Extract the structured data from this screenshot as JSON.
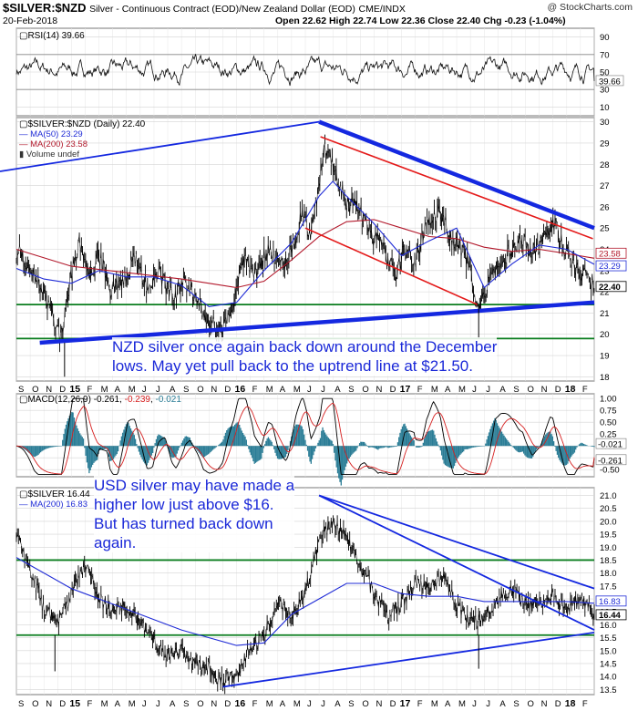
{
  "header": {
    "symbol": "$SILVER:$NZD",
    "description": "Silver - Continuous Contract (EOD)/New Zealand Dollar (EOD)",
    "exchange": "CME/INDX",
    "date": "20-Feb-2018",
    "ohlc_text": "Open 22.62  High 22.74  Low 22.36  Close 22.40  Chg -0.23 (-1.04%)",
    "watermark": "@ StockCharts.com"
  },
  "colors": {
    "price": "#000000",
    "ma50": "#1f2bd6",
    "ma200": "#b2182b",
    "trend_blue": "#1428e0",
    "resist_red": "#e41a1a",
    "support_green": "#0a7d1e",
    "macd_hist": "#2b7d96",
    "annotation": "#1a28d8"
  },
  "panels": {
    "rsi": {
      "legend": "RSI(14) 39.66",
      "last_label": "39.66",
      "ticks": [
        "90",
        "70",
        "50",
        "30",
        "10"
      ]
    },
    "nzd": {
      "legend_main": "$SILVER:$NZD (Daily) 22.40",
      "legend_ma50": "MA(50) 23.29",
      "legend_ma200": "MA(200) 23.58",
      "legend_volume": "Volume undef",
      "ticks": [
        "30",
        "29",
        "28",
        "27",
        "26",
        "25",
        "24",
        "23",
        "22",
        "21",
        "20",
        "19",
        "18"
      ],
      "last_labels": [
        "23.58",
        "23.29",
        "22.40"
      ]
    },
    "macd": {
      "legend_prefix": "MACD(12,26,9)",
      "legend_v1": "-0.261",
      "legend_v2": "-0.239",
      "legend_v3": "-0.021",
      "ticks": [
        "1.00",
        "0.75",
        "0.50",
        "0.25",
        "0.00",
        "-0.25",
        "-0.50"
      ],
      "last_labels": [
        "-0.021",
        "-0.261"
      ]
    },
    "usd": {
      "legend_main": "$SILVER 16.44",
      "legend_ma200": "MA(200) 16.83",
      "ticks": [
        "21.0",
        "20.5",
        "20.0",
        "19.5",
        "19.0",
        "18.5",
        "18.0",
        "17.5",
        "17.0",
        "16.5",
        "16.0",
        "15.5",
        "15.0",
        "14.5",
        "14.0",
        "13.5"
      ],
      "last_labels": [
        "16.83",
        "16.44"
      ]
    }
  },
  "xaxis": {
    "labels": [
      "S",
      "O",
      "N",
      "D",
      "15",
      "F",
      "M",
      "A",
      "M",
      "J",
      "J",
      "A",
      "S",
      "O",
      "N",
      "D",
      "16",
      "F",
      "M",
      "A",
      "M",
      "J",
      "J",
      "A",
      "S",
      "O",
      "N",
      "D",
      "17",
      "F",
      "M",
      "A",
      "M",
      "J",
      "J",
      "A",
      "S",
      "O",
      "N",
      "D",
      "18",
      "F"
    ]
  },
  "annotations": {
    "nzd_note": [
      "NZD silver once again back down around the December",
      "lows. May yet pull back to the uptrend line at $21.50."
    ],
    "usd_note": [
      "USD silver may have made a",
      "higher low just above $16.",
      "But has turned back down",
      "again."
    ]
  },
  "chart_data": [
    {
      "type": "line",
      "panel": "RSI",
      "ylim": [
        0,
        100
      ],
      "ticks": [
        10,
        30,
        50,
        70,
        90
      ],
      "reference_lines": [
        30,
        70
      ],
      "last": 39.66
    },
    {
      "type": "line",
      "panel": "$SILVER:$NZD (Daily)",
      "ylim": [
        17.8,
        30.2
      ],
      "x_months": [
        0,
        42
      ],
      "series": [
        {
          "name": "$SILVER:$NZD",
          "points": [
            [
              0,
              24.0
            ],
            [
              1.5,
              22.6
            ],
            [
              2.5,
              21.0
            ],
            [
              3.2,
              19.8
            ],
            [
              4,
              22.8
            ],
            [
              4.6,
              24.4
            ],
            [
              5.3,
              22.5
            ],
            [
              6,
              23.8
            ],
            [
              6.8,
              22.0
            ],
            [
              7.8,
              22.6
            ],
            [
              8.6,
              23.5
            ],
            [
              9.5,
              22.2
            ],
            [
              10.3,
              22.9
            ],
            [
              11.3,
              21.8
            ],
            [
              12.3,
              22.4
            ],
            [
              13,
              21.6
            ],
            [
              14,
              20.7
            ],
            [
              15,
              20.2
            ],
            [
              15.8,
              21.5
            ],
            [
              16.5,
              23.6
            ],
            [
              17.3,
              22.8
            ],
            [
              18.3,
              24.0
            ],
            [
              19,
              23.3
            ],
            [
              19.8,
              23.6
            ],
            [
              20.8,
              25.7
            ],
            [
              21.4,
              24.6
            ],
            [
              22.4,
              28.8
            ],
            [
              22.8,
              28.4
            ],
            [
              23.4,
              27.1
            ],
            [
              24,
              26.2
            ],
            [
              25,
              25.8
            ],
            [
              25.6,
              24.7
            ],
            [
              26.4,
              24.3
            ],
            [
              27,
              23.5
            ],
            [
              27.6,
              22.8
            ],
            [
              28.2,
              24.0
            ],
            [
              29,
              23.4
            ],
            [
              29.8,
              25.3
            ],
            [
              30.8,
              25.8
            ],
            [
              31.8,
              24.4
            ],
            [
              32.6,
              23.8
            ],
            [
              33,
              22.8
            ],
            [
              33.5,
              21.4
            ],
            [
              34.4,
              22.5
            ],
            [
              35.2,
              23.5
            ],
            [
              36,
              24.0
            ],
            [
              36.8,
              24.6
            ],
            [
              37.5,
              23.8
            ],
            [
              38.3,
              24.5
            ],
            [
              39,
              25.4
            ],
            [
              39.8,
              24.0
            ],
            [
              40.4,
              23.4
            ],
            [
              41.2,
              22.8
            ],
            [
              42,
              22.4
            ]
          ]
        },
        {
          "name": "MA(50)",
          "points": [
            [
              0,
              23.1
            ],
            [
              2,
              22.6
            ],
            [
              4,
              22.4
            ],
            [
              6,
              23.0
            ],
            [
              8,
              22.7
            ],
            [
              10,
              22.7
            ],
            [
              12,
              22.3
            ],
            [
              14,
              21.3
            ],
            [
              16,
              21.5
            ],
            [
              18,
              23.0
            ],
            [
              20,
              24.3
            ],
            [
              22,
              26.5
            ],
            [
              23,
              27.2
            ],
            [
              24,
              26.5
            ],
            [
              26,
              25.2
            ],
            [
              28,
              23.7
            ],
            [
              30,
              24.4
            ],
            [
              32,
              25.0
            ],
            [
              33,
              23.6
            ],
            [
              34,
              22.2
            ],
            [
              36,
              23.3
            ],
            [
              38,
              24.2
            ],
            [
              40,
              24.0
            ],
            [
              42,
              23.29
            ]
          ]
        },
        {
          "name": "MA(200)",
          "points": [
            [
              0,
              24.0
            ],
            [
              4,
              23.2
            ],
            [
              8,
              22.9
            ],
            [
              12,
              22.6
            ],
            [
              16,
              22.2
            ],
            [
              18,
              22.5
            ],
            [
              20,
              23.5
            ],
            [
              22,
              24.6
            ],
            [
              24,
              25.3
            ],
            [
              26,
              25.4
            ],
            [
              28,
              25.0
            ],
            [
              30,
              24.6
            ],
            [
              32,
              24.5
            ],
            [
              34,
              24.1
            ],
            [
              36,
              23.9
            ],
            [
              38,
              24.0
            ],
            [
              40,
              23.8
            ],
            [
              42,
              23.58
            ]
          ]
        }
      ],
      "trendlines": [
        {
          "name": "uptrend support",
          "from": [
            1.7,
            19.6
          ],
          "to": [
            42,
            21.5
          ]
        },
        {
          "name": "upper channel",
          "from": [
            22,
            30.0
          ],
          "to": [
            42,
            25.0
          ]
        },
        {
          "name": "long uptrend",
          "from": [
            -4,
            26.5
          ],
          "to": [
            22,
            30.0
          ]
        }
      ],
      "horizontal_levels": [
        21.4,
        19.8
      ],
      "last": 22.4
    },
    {
      "type": "line",
      "panel": "MACD(12,26,9)",
      "ylim": [
        -0.65,
        1.1
      ],
      "ticks": [
        -0.5,
        -0.25,
        0,
        0.25,
        0.5,
        0.75,
        1.0
      ],
      "last": {
        "macd": -0.261,
        "signal": -0.239,
        "histogram": -0.021
      }
    },
    {
      "type": "line",
      "panel": "$SILVER",
      "ylim": [
        13.3,
        21.3
      ],
      "x_months": [
        0,
        42
      ],
      "series": [
        {
          "name": "$SILVER",
          "points": [
            [
              0,
              19.6
            ],
            [
              1,
              18.2
            ],
            [
              2,
              16.6
            ],
            [
              3,
              16.0
            ],
            [
              4,
              17.2
            ],
            [
              5,
              18.3
            ],
            [
              6,
              17.0
            ],
            [
              7,
              16.6
            ],
            [
              8,
              16.8
            ],
            [
              9,
              16.1
            ],
            [
              10,
              15.3
            ],
            [
              11,
              14.8
            ],
            [
              12,
              15.0
            ],
            [
              13,
              14.6
            ],
            [
              14,
              14.3
            ],
            [
              15,
              13.8
            ],
            [
              16,
              14.1
            ],
            [
              17,
              15.1
            ],
            [
              18,
              15.5
            ],
            [
              19,
              17.0
            ],
            [
              20,
              16.2
            ],
            [
              21,
              17.3
            ],
            [
              22,
              19.2
            ],
            [
              23,
              20.1
            ],
            [
              24,
              19.3
            ],
            [
              25,
              18.3
            ],
            [
              26,
              17.2
            ],
            [
              27,
              16.3
            ],
            [
              28,
              16.8
            ],
            [
              29,
              17.6
            ],
            [
              30,
              17.4
            ],
            [
              31,
              18.0
            ],
            [
              32,
              16.8
            ],
            [
              33,
              16.0
            ],
            [
              34,
              16.3
            ],
            [
              35,
              17.0
            ],
            [
              36,
              17.4
            ],
            [
              37,
              16.8
            ],
            [
              38,
              16.8
            ],
            [
              39,
              17.1
            ],
            [
              40,
              16.6
            ],
            [
              41,
              17.0
            ],
            [
              42,
              16.44
            ]
          ]
        },
        {
          "name": "MA(200)",
          "points": [
            [
              0,
              18.6
            ],
            [
              4,
              17.4
            ],
            [
              8,
              16.6
            ],
            [
              12,
              15.8
            ],
            [
              16,
              15.2
            ],
            [
              18,
              15.3
            ],
            [
              20,
              16.4
            ],
            [
              22,
              17.0
            ],
            [
              24,
              17.6
            ],
            [
              26,
              17.6
            ],
            [
              28,
              17.2
            ],
            [
              30,
              17.1
            ],
            [
              32,
              17.1
            ],
            [
              34,
              16.9
            ],
            [
              36,
              16.9
            ],
            [
              38,
              16.9
            ],
            [
              40,
              16.9
            ],
            [
              42,
              16.83
            ]
          ]
        }
      ],
      "trendlines": [
        {
          "name": "support",
          "from": [
            15,
            13.6
          ],
          "to": [
            42,
            15.7
          ]
        },
        {
          "name": "resistance",
          "from": [
            22,
            21.0
          ],
          "to": [
            42,
            17.4
          ]
        },
        {
          "name": "resistance 2",
          "from": [
            22,
            21.0
          ],
          "to": [
            42,
            15.8
          ]
        }
      ],
      "horizontal_levels": [
        18.5,
        15.6
      ],
      "last": 16.44
    }
  ]
}
